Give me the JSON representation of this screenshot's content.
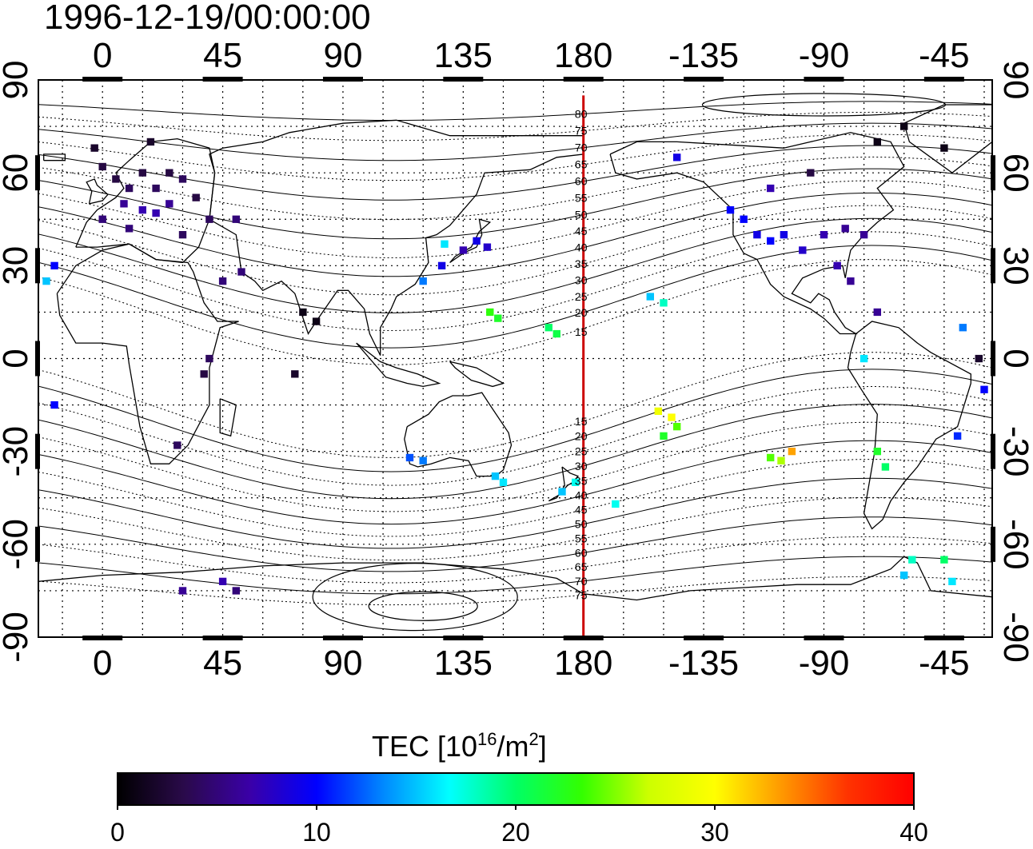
{
  "title": "1996-12-19/00:00:00",
  "axes": {
    "top_ticks": [
      "0",
      "45",
      "90",
      "135",
      "180",
      "-135",
      "-90",
      "-45"
    ],
    "bottom_ticks": [
      "0",
      "45",
      "90",
      "135",
      "180",
      "-135",
      "-90",
      "-45"
    ],
    "left_ticks": [
      "90",
      "60",
      "30",
      "0",
      "-30",
      "-60",
      "-90"
    ],
    "right_ticks": [
      "90",
      "60",
      "30",
      "0",
      "-30",
      "-60",
      "-90"
    ]
  },
  "map": {
    "projection": "equirectangular",
    "lon_range_deg": [
      -24,
      333
    ],
    "lat_range_deg": [
      -90,
      90
    ],
    "grid": true,
    "grid_spacing_deg": 15,
    "reference_meridian": 180,
    "reference_meridian_color": "#cc0000",
    "magnetic_latitude_labels": [
      "80",
      "75",
      "70",
      "65",
      "60",
      "55",
      "50",
      "45",
      "40",
      "35",
      "30",
      "25",
      "20",
      "15",
      "15",
      "20",
      "25",
      "30",
      "35",
      "40",
      "45",
      "50",
      "55",
      "60",
      "65",
      "70",
      "75"
    ]
  },
  "colorbar": {
    "title_prefix": "TEC  [10",
    "title_sup1": "16",
    "title_mid": "/m",
    "title_sup2": "2",
    "title_suffix": "]",
    "tick_labels": [
      "0",
      "10",
      "20",
      "30",
      "40"
    ],
    "min": 0,
    "max": 40,
    "colors": [
      "#000000",
      "#2a0a4a",
      "#3a00a8",
      "#0000ff",
      "#0088ff",
      "#00ffff",
      "#00ff66",
      "#33ff00",
      "#ccff00",
      "#ffff00",
      "#ff9900",
      "#ff3300",
      "#ff0000"
    ]
  },
  "chart_data": {
    "type": "heatmap",
    "quantity": "TEC",
    "units": "10^16/m^2",
    "points": [
      {
        "lon": 0,
        "lat": 62,
        "tec": 3
      },
      {
        "lon": 5,
        "lat": 58,
        "tec": 3
      },
      {
        "lon": 10,
        "lat": 55,
        "tec": 4
      },
      {
        "lon": 15,
        "lat": 60,
        "tec": 3
      },
      {
        "lon": 20,
        "lat": 55,
        "tec": 4
      },
      {
        "lon": 25,
        "lat": 60,
        "tec": 3
      },
      {
        "lon": 30,
        "lat": 58,
        "tec": 4
      },
      {
        "lon": 8,
        "lat": 50,
        "tec": 6
      },
      {
        "lon": 15,
        "lat": 48,
        "tec": 7
      },
      {
        "lon": 20,
        "lat": 47,
        "tec": 7
      },
      {
        "lon": 25,
        "lat": 50,
        "tec": 6
      },
      {
        "lon": 0,
        "lat": 45,
        "tec": 5
      },
      {
        "lon": 10,
        "lat": 42,
        "tec": 5
      },
      {
        "lon": 30,
        "lat": 40,
        "tec": 4
      },
      {
        "lon": 40,
        "lat": 45,
        "tec": 4
      },
      {
        "lon": -3,
        "lat": 68,
        "tec": 2
      },
      {
        "lon": 18,
        "lat": 70,
        "tec": 2
      },
      {
        "lon": 35,
        "lat": 52,
        "tec": 3
      },
      {
        "lon": 50,
        "lat": 45,
        "tec": 5
      },
      {
        "lon": 45,
        "lat": 25,
        "tec": 5
      },
      {
        "lon": 52,
        "lat": 28,
        "tec": 5
      },
      {
        "lon": 75,
        "lat": 15,
        "tec": 1
      },
      {
        "lon": 80,
        "lat": 12,
        "tec": 1
      },
      {
        "lon": 72,
        "lat": -5,
        "tec": 2
      },
      {
        "lon": 40,
        "lat": 0,
        "tec": 4
      },
      {
        "lon": 38,
        "lat": -5,
        "tec": 3
      },
      {
        "lon": 28,
        "lat": -28,
        "tec": 4
      },
      {
        "lon": -18,
        "lat": -15,
        "tec": 10
      },
      {
        "lon": -21,
        "lat": 25,
        "tec": 15
      },
      {
        "lon": -18,
        "lat": 30,
        "tec": 10
      },
      {
        "lon": 120,
        "lat": 25,
        "tec": 13
      },
      {
        "lon": 127,
        "lat": 30,
        "tec": 9
      },
      {
        "lon": 128,
        "lat": 37,
        "tec": 16
      },
      {
        "lon": 140,
        "lat": 38,
        "tec": 9
      },
      {
        "lon": 144,
        "lat": 36,
        "tec": 8
      },
      {
        "lon": 135,
        "lat": 35,
        "tec": 7
      },
      {
        "lon": 145,
        "lat": 15,
        "tec": 23
      },
      {
        "lon": 148,
        "lat": 13,
        "tec": 22
      },
      {
        "lon": 167,
        "lat": 10,
        "tec": 20
      },
      {
        "lon": 170,
        "lat": 8,
        "tec": 21
      },
      {
        "lon": 115,
        "lat": -32,
        "tec": 12
      },
      {
        "lon": 120,
        "lat": -33,
        "tec": 13
      },
      {
        "lon": 147,
        "lat": -38,
        "tec": 15
      },
      {
        "lon": 150,
        "lat": -40,
        "tec": 16
      },
      {
        "lon": 172,
        "lat": -43,
        "tec": 15
      },
      {
        "lon": 177,
        "lat": -40,
        "tec": 17
      },
      {
        "lon": 192,
        "lat": -47,
        "tec": 17
      },
      {
        "lon": 205,
        "lat": 20,
        "tec": 15
      },
      {
        "lon": 210,
        "lat": 18,
        "tec": 18
      },
      {
        "lon": 208,
        "lat": -17,
        "tec": 29
      },
      {
        "lon": 213,
        "lat": -19,
        "tec": 30
      },
      {
        "lon": 215,
        "lat": -22,
        "tec": 24
      },
      {
        "lon": 210,
        "lat": -25,
        "tec": 22
      },
      {
        "lon": 250,
        "lat": -32,
        "tec": 24
      },
      {
        "lon": 254,
        "lat": -33,
        "tec": 26
      },
      {
        "lon": 258,
        "lat": -30,
        "tec": 33
      },
      {
        "lon": 240,
        "lat": 45,
        "tec": 10
      },
      {
        "lon": 245,
        "lat": 40,
        "tec": 9
      },
      {
        "lon": 250,
        "lat": 38,
        "tec": 10
      },
      {
        "lon": 255,
        "lat": 40,
        "tec": 9
      },
      {
        "lon": 262,
        "lat": 35,
        "tec": 8
      },
      {
        "lon": 270,
        "lat": 40,
        "tec": 7
      },
      {
        "lon": 278,
        "lat": 42,
        "tec": 6
      },
      {
        "lon": 285,
        "lat": 40,
        "tec": 6
      },
      {
        "lon": 275,
        "lat": 30,
        "tec": 7
      },
      {
        "lon": 280,
        "lat": 25,
        "tec": 6
      },
      {
        "lon": 290,
        "lat": 15,
        "tec": 6
      },
      {
        "lon": 235,
        "lat": 48,
        "tec": 10
      },
      {
        "lon": 250,
        "lat": 55,
        "tec": 7
      },
      {
        "lon": 265,
        "lat": 60,
        "tec": 3
      },
      {
        "lon": 290,
        "lat": 70,
        "tec": 1
      },
      {
        "lon": 300,
        "lat": 75,
        "tec": 1
      },
      {
        "lon": 315,
        "lat": 68,
        "tec": 1
      },
      {
        "lon": 215,
        "lat": 65,
        "tec": 9
      },
      {
        "lon": 322,
        "lat": 10,
        "tec": 13
      },
      {
        "lon": 328,
        "lat": 0,
        "tec": 2
      },
      {
        "lon": 330,
        "lat": -10,
        "tec": 10
      },
      {
        "lon": 320,
        "lat": -25,
        "tec": 11
      },
      {
        "lon": 285,
        "lat": 0,
        "tec": 16
      },
      {
        "lon": 290,
        "lat": -30,
        "tec": 22
      },
      {
        "lon": 293,
        "lat": -35,
        "tec": 20
      },
      {
        "lon": 303,
        "lat": -65,
        "tec": 18
      },
      {
        "lon": 315,
        "lat": -65,
        "tec": 20
      },
      {
        "lon": 318,
        "lat": -72,
        "tec": 16
      },
      {
        "lon": 300,
        "lat": -70,
        "tec": 15
      },
      {
        "lon": 30,
        "lat": -75,
        "tec": 6
      },
      {
        "lon": 45,
        "lat": -72,
        "tec": 7
      },
      {
        "lon": 50,
        "lat": -75,
        "tec": 5
      }
    ]
  }
}
